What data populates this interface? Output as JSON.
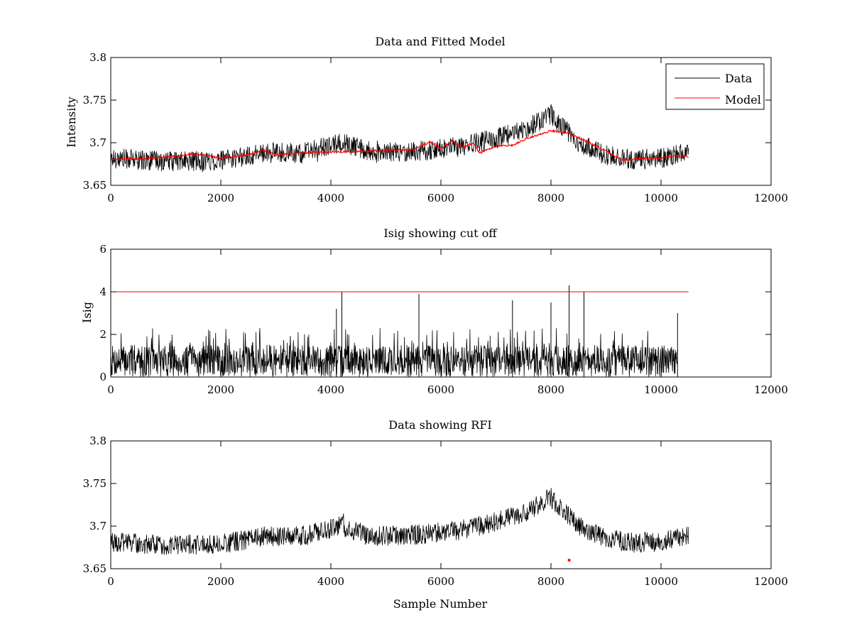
{
  "colors": {
    "data": "#000000",
    "model": "#ff0000",
    "cutoff": "#ff0000",
    "rfi": "#ff0000",
    "background": "#ffffff"
  },
  "chart_data": [
    {
      "type": "line",
      "title": "Data and Fitted Model",
      "xlabel": "",
      "ylabel": "Intensity",
      "xlim": [
        0,
        12000
      ],
      "ylim": [
        3.65,
        3.8
      ],
      "xticks": [
        "0",
        "2000",
        "4000",
        "6000",
        "8000",
        "10000",
        "12000"
      ],
      "yticks": [
        "3.65",
        "3.7",
        "3.75",
        "3.8"
      ],
      "legend": {
        "position": "top-right",
        "entries": [
          "Data",
          "Model"
        ]
      },
      "series": [
        {
          "name": "Data",
          "kind": "noisy",
          "noise_amplitude": 0.012,
          "x": [
            0,
            1000,
            2000,
            2800,
            3500,
            4200,
            4800,
            5600,
            6300,
            7000,
            7500,
            8000,
            8500,
            9000,
            9500,
            10000,
            10500
          ],
          "y": [
            3.682,
            3.678,
            3.679,
            3.688,
            3.688,
            3.7,
            3.688,
            3.69,
            3.695,
            3.705,
            3.715,
            3.733,
            3.7,
            3.685,
            3.68,
            3.682,
            3.69
          ]
        },
        {
          "name": "Model",
          "x": [
            0,
            500,
            1000,
            1500,
            2000,
            2500,
            2800,
            3000,
            3500,
            4000,
            4500,
            5000,
            5500,
            5800,
            6000,
            6200,
            6400,
            6600,
            6700,
            7000,
            7300,
            7600,
            8000,
            8300,
            8600,
            9000,
            9300,
            9600,
            10000,
            10300,
            10500
          ],
          "y": [
            3.681,
            3.681,
            3.683,
            3.687,
            3.682,
            3.686,
            3.691,
            3.686,
            3.688,
            3.689,
            3.69,
            3.691,
            3.692,
            3.701,
            3.693,
            3.702,
            3.695,
            3.699,
            3.688,
            3.696,
            3.697,
            3.706,
            3.714,
            3.712,
            3.703,
            3.69,
            3.68,
            3.681,
            3.682,
            3.685,
            3.684
          ]
        }
      ]
    },
    {
      "type": "line",
      "title": "Isig showing cut off",
      "xlabel": "",
      "ylabel": "Isig",
      "xlim": [
        0,
        12000
      ],
      "ylim": [
        0,
        6
      ],
      "xticks": [
        "0",
        "2000",
        "4000",
        "6000",
        "8000",
        "10000",
        "12000"
      ],
      "yticks": [
        "0",
        "2",
        "4",
        "6"
      ],
      "series": [
        {
          "kind": "noisy-spikes",
          "typical_max": 1.5,
          "x": [
            0,
            4100,
            4200,
            5600,
            7300,
            8000,
            8330,
            8600,
            10300
          ],
          "y": [
            2.5,
            3.2,
            4.0,
            3.9,
            3.6,
            3.5,
            4.3,
            4.0,
            3.0
          ]
        },
        {
          "kind": "cutoff",
          "x": [
            0,
            10500
          ],
          "y": [
            4,
            4
          ]
        }
      ]
    },
    {
      "type": "line",
      "title": "Data showing RFI",
      "xlabel": "Sample Number",
      "ylabel": "",
      "xlim": [
        0,
        12000
      ],
      "ylim": [
        3.65,
        3.8
      ],
      "xticks": [
        "0",
        "2000",
        "4000",
        "6000",
        "8000",
        "10000",
        "12000"
      ],
      "yticks": [
        "3.65",
        "3.7",
        "3.75",
        "3.8"
      ],
      "series": [
        {
          "kind": "noisy",
          "noise_amplitude": 0.012,
          "x": [
            0,
            1000,
            2000,
            2800,
            3500,
            4200,
            4800,
            5600,
            6300,
            7000,
            7500,
            8000,
            8500,
            9000,
            9500,
            10000,
            10500
          ],
          "y": [
            3.682,
            3.678,
            3.679,
            3.688,
            3.688,
            3.7,
            3.688,
            3.69,
            3.695,
            3.705,
            3.715,
            3.733,
            3.7,
            3.685,
            3.68,
            3.682,
            3.69
          ]
        },
        {
          "kind": "rfi",
          "x": [
            8330
          ],
          "y": [
            3.66
          ]
        }
      ]
    }
  ]
}
